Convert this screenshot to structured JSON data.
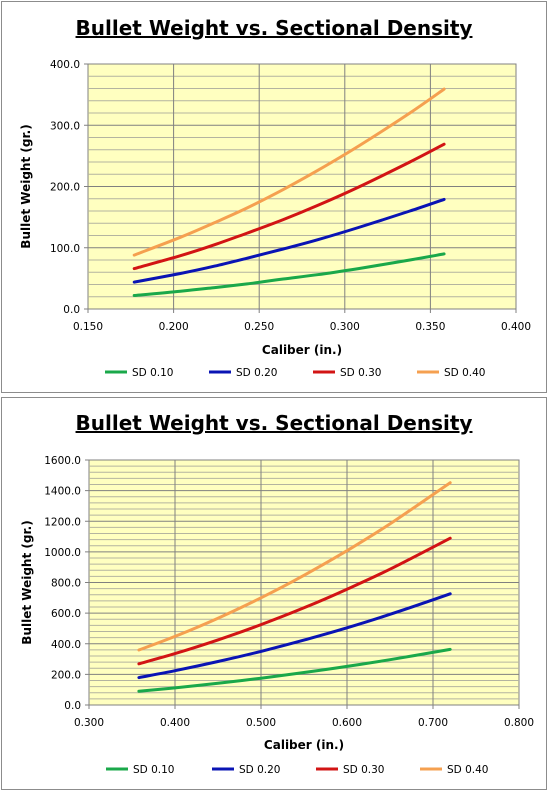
{
  "chart_data": [
    {
      "type": "line",
      "title": "Bullet Weight vs. Sectional Density",
      "xlabel": "Caliber (in.)",
      "ylabel": "Bullet Weight (gr.)",
      "xlim": [
        0.15,
        0.4
      ],
      "ylim": [
        0,
        400
      ],
      "x_ticks": [
        "0.150",
        "0.200",
        "0.250",
        "0.300",
        "0.350",
        "0.400"
      ],
      "y_ticks": [
        "0.0",
        "100.0",
        "200.0",
        "300.0",
        "400.0"
      ],
      "grid": true,
      "legend_position": "bottom",
      "plot_background": "#ffffc0",
      "series": [
        {
          "name": "SD 0.10",
          "color": "#1aa84a",
          "x": [
            0.177,
            0.204,
            0.224,
            0.243,
            0.264,
            0.284,
            0.308,
            0.338,
            0.358
          ],
          "y": [
            22,
            29,
            35,
            41,
            49,
            56,
            66,
            80,
            90
          ]
        },
        {
          "name": "SD 0.20",
          "color": "#0a14b4",
          "x": [
            0.177,
            0.204,
            0.224,
            0.243,
            0.264,
            0.284,
            0.308,
            0.338,
            0.358
          ],
          "y": [
            44,
            58,
            70,
            83,
            98,
            113,
            133,
            160,
            179
          ]
        },
        {
          "name": "SD 0.30",
          "color": "#d21414",
          "x": [
            0.177,
            0.204,
            0.224,
            0.243,
            0.264,
            0.284,
            0.308,
            0.338,
            0.358
          ],
          "y": [
            66,
            87,
            105,
            124,
            146,
            169,
            199,
            240,
            269
          ]
        },
        {
          "name": "SD 0.40",
          "color": "#f5a050",
          "x": [
            0.177,
            0.204,
            0.224,
            0.243,
            0.264,
            0.284,
            0.308,
            0.338,
            0.358
          ],
          "y": [
            88,
            117,
            141,
            165,
            195,
            226,
            266,
            320,
            359
          ]
        }
      ]
    },
    {
      "type": "line",
      "title": "Bullet Weight vs. Sectional Density",
      "xlabel": "Caliber (in.)",
      "ylabel": "Bullet Weight (gr.)",
      "xlim": [
        0.3,
        0.8
      ],
      "ylim": [
        0,
        1600
      ],
      "x_ticks": [
        "0.300",
        "0.400",
        "0.500",
        "0.600",
        "0.700",
        "0.800"
      ],
      "y_ticks": [
        "0.0",
        "200.0",
        "400.0",
        "600.0",
        "800.0",
        "1000.0",
        "1200.0",
        "1400.0",
        "1600.0"
      ],
      "grid": true,
      "legend_position": "bottom",
      "plot_background": "#ffffc0",
      "series": [
        {
          "name": "SD 0.10",
          "color": "#1aa84a",
          "x": [
            0.358,
            0.4,
            0.45,
            0.5,
            0.55,
            0.6,
            0.65,
            0.72
          ],
          "y": [
            90,
            112,
            142,
            175,
            212,
            252,
            296,
            363
          ]
        },
        {
          "name": "SD 0.20",
          "color": "#0a14b4",
          "x": [
            0.358,
            0.4,
            0.45,
            0.5,
            0.55,
            0.6,
            0.65,
            0.72
          ],
          "y": [
            179,
            224,
            284,
            350,
            424,
            504,
            592,
            726
          ]
        },
        {
          "name": "SD 0.30",
          "color": "#d21414",
          "x": [
            0.358,
            0.4,
            0.45,
            0.5,
            0.55,
            0.6,
            0.65,
            0.72
          ],
          "y": [
            269,
            336,
            425,
            525,
            635,
            756,
            887,
            1089
          ]
        },
        {
          "name": "SD 0.40",
          "color": "#f5a050",
          "x": [
            0.358,
            0.4,
            0.45,
            0.5,
            0.55,
            0.6,
            0.65,
            0.72
          ],
          "y": [
            359,
            448,
            567,
            700,
            847,
            1008,
            1183,
            1452
          ]
        }
      ]
    }
  ]
}
